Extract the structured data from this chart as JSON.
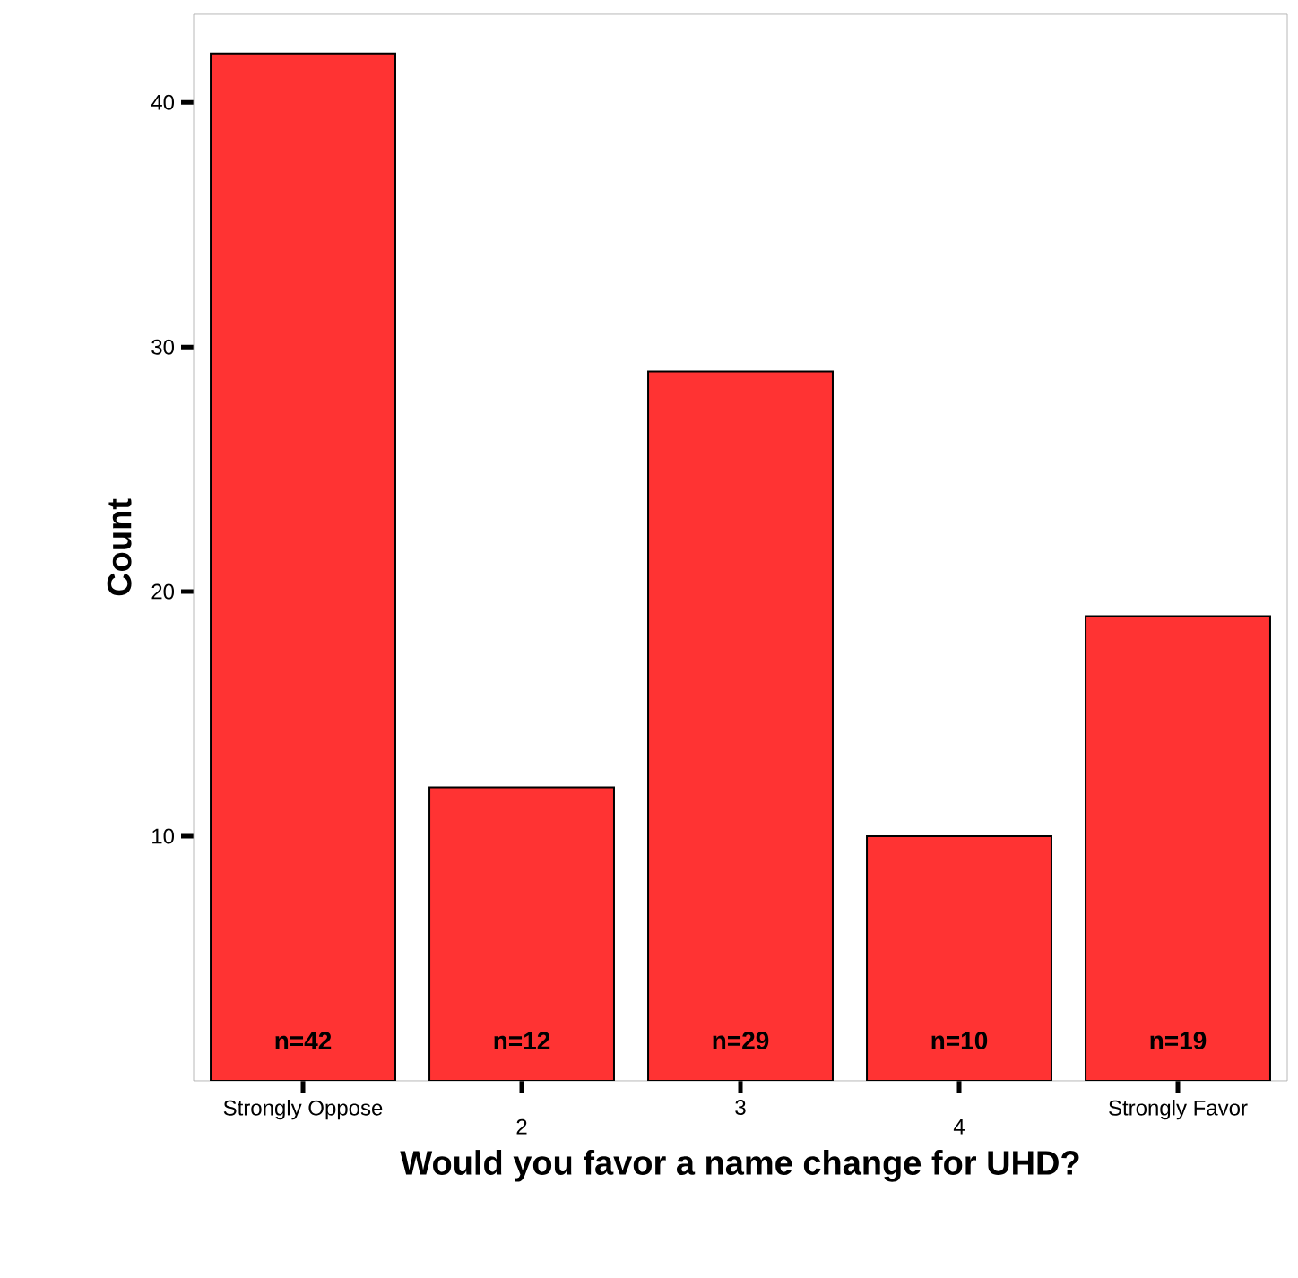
{
  "chart_data": {
    "type": "bar",
    "xlabel": "Would you favor a name change for UHD?",
    "ylabel": "Count",
    "categories": [
      "Strongly Oppose",
      "2",
      "3",
      "4",
      "Strongly Favor"
    ],
    "values": [
      42,
      12,
      29,
      10,
      19
    ],
    "value_labels": [
      "n=42",
      "n=12",
      "n=29",
      "n=10",
      "n=19"
    ],
    "color": "#ff3333",
    "ylim": [
      0,
      43.6
    ],
    "yticks": [
      10,
      20,
      30,
      40
    ]
  }
}
